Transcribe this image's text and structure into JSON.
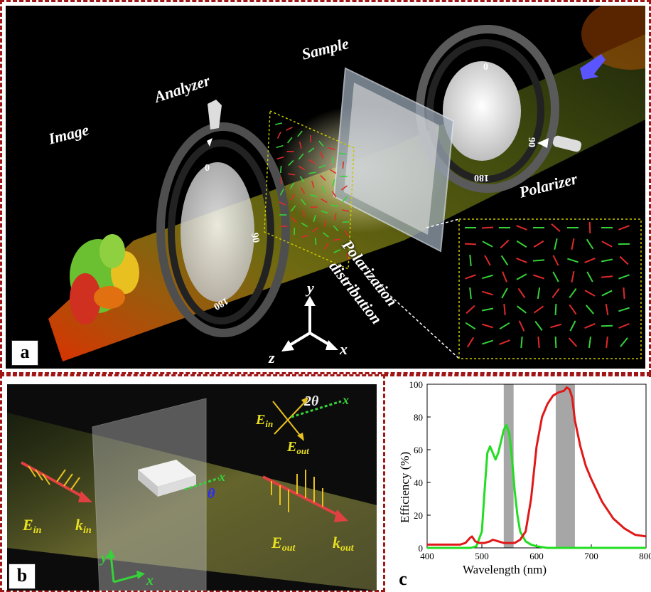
{
  "panel_a": {
    "tag": "a",
    "labels": {
      "image": "Image",
      "analyzer": "Analyzer",
      "sample": "Sample",
      "polarizer": "Polarizer",
      "pol_dist_1": "Polarization",
      "pol_dist_2": "distribution"
    },
    "dial_polarizer": {
      "t0": "0",
      "t90": "90",
      "t180": "180"
    },
    "dial_analyzer": {
      "t0": "0",
      "t90": "90",
      "t180": "180"
    },
    "axes": {
      "x": "x",
      "y": "y",
      "z": "z"
    }
  },
  "panel_b": {
    "tag": "b",
    "e_in": "E",
    "e_in_sub": "in",
    "k_in": "k",
    "k_in_sub": "in",
    "e_out": "E",
    "e_out_sub": "out",
    "k_out": "k",
    "k_out_sub": "out",
    "two_theta": "2θ",
    "theta": "θ",
    "axis_x": "x",
    "axis_y": "y"
  },
  "panel_c": {
    "tag": "c"
  },
  "chart_data": {
    "type": "line",
    "xlabel": "Wavelength  (nm)",
    "ylabel": "Efficiency  (%)",
    "xlim": [
      400,
      800
    ],
    "ylim": [
      0,
      100
    ],
    "xticks": [
      "400",
      "500",
      "600",
      "700",
      "800"
    ],
    "yticks": [
      "0",
      "20",
      "40",
      "60",
      "80",
      "100"
    ],
    "highlight_bands": [
      [
        540,
        558
      ],
      [
        635,
        670
      ]
    ],
    "band_color": "#a6a6a6",
    "series": [
      {
        "color": "#22dd22",
        "x": [
          400,
          440,
          470,
          480,
          490,
          500,
          505,
          510,
          515,
          520,
          525,
          530,
          535,
          540,
          545,
          550,
          555,
          560,
          565,
          570,
          580,
          590,
          600,
          620,
          650,
          700,
          800
        ],
        "y": [
          0,
          0,
          0,
          0,
          1,
          10,
          35,
          58,
          62,
          58,
          54,
          58,
          65,
          72,
          75,
          70,
          55,
          35,
          20,
          10,
          4,
          2,
          1,
          0,
          0,
          0,
          0
        ]
      },
      {
        "color": "#e01818",
        "x": [
          400,
          420,
          440,
          460,
          470,
          478,
          482,
          488,
          495,
          505,
          515,
          520,
          530,
          540,
          550,
          560,
          570,
          580,
          590,
          600,
          610,
          620,
          630,
          640,
          650,
          655,
          660,
          665,
          670,
          680,
          690,
          700,
          720,
          740,
          760,
          780,
          800
        ],
        "y": [
          2,
          2,
          2,
          2,
          3,
          6,
          7,
          4,
          3,
          3,
          4,
          5,
          4,
          3,
          3,
          3,
          5,
          10,
          30,
          62,
          80,
          88,
          93,
          95,
          96,
          98,
          97,
          92,
          78,
          62,
          50,
          42,
          28,
          18,
          12,
          8,
          7
        ]
      }
    ]
  },
  "colors": {
    "border": "#a01515",
    "red_arrow": "#e02a2a",
    "green_arrow": "#36d23a"
  }
}
